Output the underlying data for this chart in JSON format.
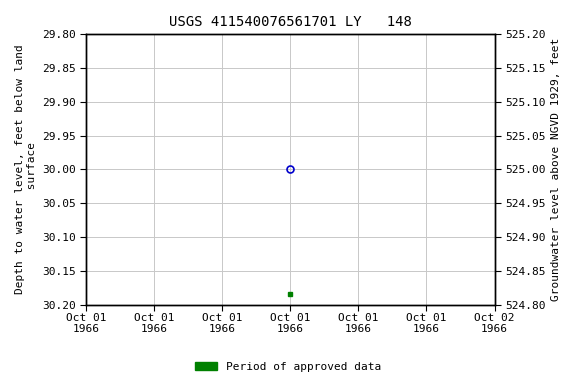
{
  "title": "USGS 411540076561701 LY   148",
  "ylabel_left": "Depth to water level, feet below land\n surface",
  "ylabel_right": "Groundwater level above NGVD 1929, feet",
  "ylim_left": [
    30.2,
    29.8
  ],
  "ylim_right": [
    524.8,
    525.2
  ],
  "yticks_left": [
    29.8,
    29.85,
    29.9,
    29.95,
    30.0,
    30.05,
    30.1,
    30.15,
    30.2
  ],
  "yticks_right": [
    525.2,
    525.15,
    525.1,
    525.05,
    525.0,
    524.95,
    524.9,
    524.85,
    524.8
  ],
  "point_open_x": 3.0,
  "point_open_y": 30.0,
  "point_filled_x": 3.0,
  "point_filled_y": 30.185,
  "open_color": "#0000cc",
  "filled_color": "#008000",
  "background_color": "#ffffff",
  "grid_color": "#c8c8c8",
  "legend_label": "Period of approved data",
  "legend_color": "#008000",
  "title_fontsize": 10,
  "label_fontsize": 8,
  "tick_fontsize": 8,
  "xlim": [
    0,
    6
  ],
  "xtick_positions": [
    0,
    1,
    2,
    3,
    4,
    5,
    6
  ],
  "xtick_labels": [
    "Oct 01\n1966",
    "Oct 01\n1966",
    "Oct 01\n1966",
    "Oct 01\n1966",
    "Oct 01\n1966",
    "Oct 01\n1966",
    "Oct 02\n1966"
  ]
}
